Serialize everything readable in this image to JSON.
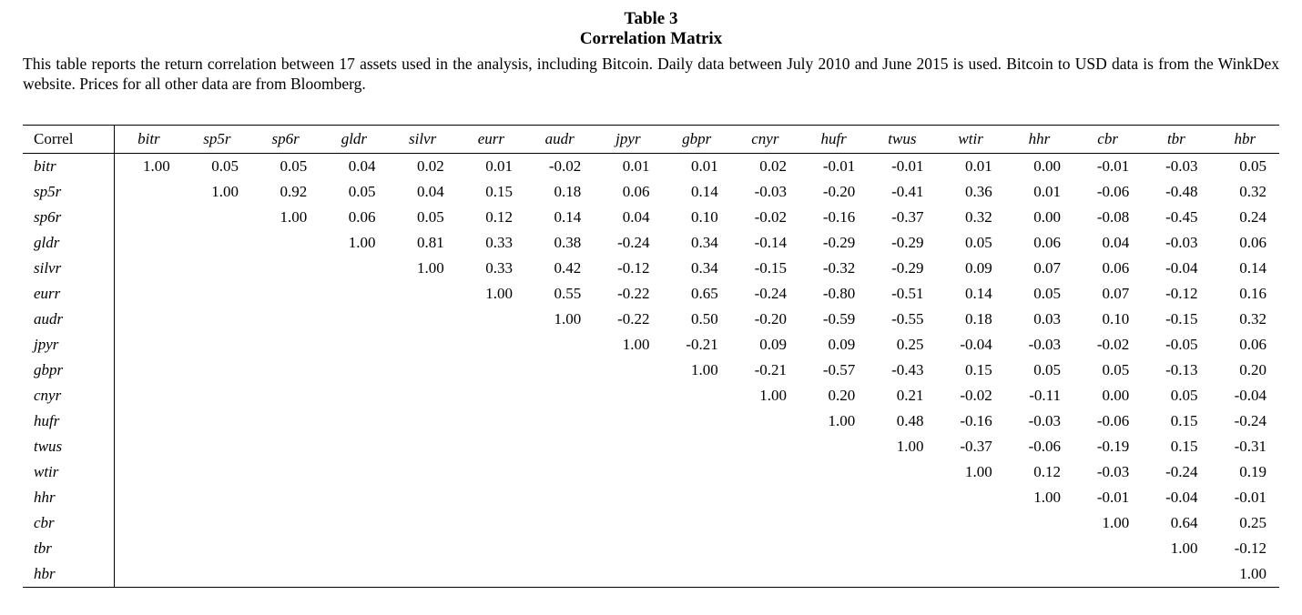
{
  "header": {
    "table_number": "Table 3",
    "table_title": "Correlation Matrix",
    "description": "This table reports the return correlation between 17 assets used in the analysis, including Bitcoin. Daily data between July 2010 and June 2015 is used. Bitcoin to USD data is from the WinkDex website. Prices for all other data are from Bloomberg."
  },
  "colors": {
    "text": "#000000",
    "background": "#ffffff",
    "rule": "#000000"
  },
  "table": {
    "corner_label": "Correl",
    "columns": [
      "bitr",
      "sp5r",
      "sp6r",
      "gldr",
      "silvr",
      "eurr",
      "audr",
      "jpyr",
      "gbpr",
      "cnyr",
      "hufr",
      "twus",
      "wtir",
      "hhr",
      "cbr",
      "tbr",
      "hbr"
    ],
    "rows": [
      {
        "label": "bitr",
        "values": [
          "1.00",
          "0.05",
          "0.05",
          "0.04",
          "0.02",
          "0.01",
          "-0.02",
          "0.01",
          "0.01",
          "0.02",
          "-0.01",
          "-0.01",
          "0.01",
          "0.00",
          "-0.01",
          "-0.03",
          "0.05"
        ]
      },
      {
        "label": "sp5r",
        "values": [
          "",
          "1.00",
          "0.92",
          "0.05",
          "0.04",
          "0.15",
          "0.18",
          "0.06",
          "0.14",
          "-0.03",
          "-0.20",
          "-0.41",
          "0.36",
          "0.01",
          "-0.06",
          "-0.48",
          "0.32"
        ]
      },
      {
        "label": "sp6r",
        "values": [
          "",
          "",
          "1.00",
          "0.06",
          "0.05",
          "0.12",
          "0.14",
          "0.04",
          "0.10",
          "-0.02",
          "-0.16",
          "-0.37",
          "0.32",
          "0.00",
          "-0.08",
          "-0.45",
          "0.24"
        ]
      },
      {
        "label": "gldr",
        "values": [
          "",
          "",
          "",
          "1.00",
          "0.81",
          "0.33",
          "0.38",
          "-0.24",
          "0.34",
          "-0.14",
          "-0.29",
          "-0.29",
          "0.05",
          "0.06",
          "0.04",
          "-0.03",
          "0.06"
        ]
      },
      {
        "label": "silvr",
        "values": [
          "",
          "",
          "",
          "",
          "1.00",
          "0.33",
          "0.42",
          "-0.12",
          "0.34",
          "-0.15",
          "-0.32",
          "-0.29",
          "0.09",
          "0.07",
          "0.06",
          "-0.04",
          "0.14"
        ]
      },
      {
        "label": "eurr",
        "values": [
          "",
          "",
          "",
          "",
          "",
          "1.00",
          "0.55",
          "-0.22",
          "0.65",
          "-0.24",
          "-0.80",
          "-0.51",
          "0.14",
          "0.05",
          "0.07",
          "-0.12",
          "0.16"
        ]
      },
      {
        "label": "audr",
        "values": [
          "",
          "",
          "",
          "",
          "",
          "",
          "1.00",
          "-0.22",
          "0.50",
          "-0.20",
          "-0.59",
          "-0.55",
          "0.18",
          "0.03",
          "0.10",
          "-0.15",
          "0.32"
        ]
      },
      {
        "label": "jpyr",
        "values": [
          "",
          "",
          "",
          "",
          "",
          "",
          "",
          "1.00",
          "-0.21",
          "0.09",
          "0.09",
          "0.25",
          "-0.04",
          "-0.03",
          "-0.02",
          "-0.05",
          "0.06"
        ]
      },
      {
        "label": "gbpr",
        "values": [
          "",
          "",
          "",
          "",
          "",
          "",
          "",
          "",
          "1.00",
          "-0.21",
          "-0.57",
          "-0.43",
          "0.15",
          "0.05",
          "0.05",
          "-0.13",
          "0.20"
        ]
      },
      {
        "label": "cnyr",
        "values": [
          "",
          "",
          "",
          "",
          "",
          "",
          "",
          "",
          "",
          "1.00",
          "0.20",
          "0.21",
          "-0.02",
          "-0.11",
          "0.00",
          "0.05",
          "-0.04"
        ]
      },
      {
        "label": "hufr",
        "values": [
          "",
          "",
          "",
          "",
          "",
          "",
          "",
          "",
          "",
          "",
          "1.00",
          "0.48",
          "-0.16",
          "-0.03",
          "-0.06",
          "0.15",
          "-0.24"
        ]
      },
      {
        "label": "twus",
        "values": [
          "",
          "",
          "",
          "",
          "",
          "",
          "",
          "",
          "",
          "",
          "",
          "1.00",
          "-0.37",
          "-0.06",
          "-0.19",
          "0.15",
          "-0.31"
        ]
      },
      {
        "label": "wtir",
        "values": [
          "",
          "",
          "",
          "",
          "",
          "",
          "",
          "",
          "",
          "",
          "",
          "",
          "1.00",
          "0.12",
          "-0.03",
          "-0.24",
          "0.19"
        ]
      },
      {
        "label": "hhr",
        "values": [
          "",
          "",
          "",
          "",
          "",
          "",
          "",
          "",
          "",
          "",
          "",
          "",
          "",
          "1.00",
          "-0.01",
          "-0.04",
          "-0.01"
        ]
      },
      {
        "label": "cbr",
        "values": [
          "",
          "",
          "",
          "",
          "",
          "",
          "",
          "",
          "",
          "",
          "",
          "",
          "",
          "",
          "1.00",
          "0.64",
          "0.25"
        ]
      },
      {
        "label": "tbr",
        "values": [
          "",
          "",
          "",
          "",
          "",
          "",
          "",
          "",
          "",
          "",
          "",
          "",
          "",
          "",
          "",
          "1.00",
          "-0.12"
        ]
      },
      {
        "label": "hbr",
        "values": [
          "",
          "",
          "",
          "",
          "",
          "",
          "",
          "",
          "",
          "",
          "",
          "",
          "",
          "",
          "",
          "",
          "1.00"
        ]
      }
    ]
  }
}
